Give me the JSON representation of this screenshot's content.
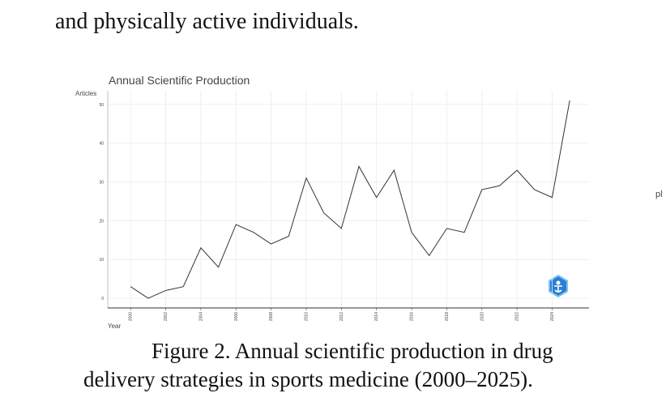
{
  "paragraph_tail": "and physically active individuals.",
  "chart_data": {
    "type": "line",
    "title": "Annual Scientific Production",
    "y_label": "Articles",
    "x_label": "Year",
    "x": [
      2000,
      2001,
      2002,
      2003,
      2004,
      2005,
      2006,
      2007,
      2008,
      2009,
      2010,
      2011,
      2012,
      2013,
      2014,
      2015,
      2016,
      2017,
      2018,
      2019,
      2020,
      2021,
      2022,
      2023,
      2024,
      2025
    ],
    "values": [
      3,
      0,
      2,
      3,
      13,
      8,
      19,
      17,
      14,
      16,
      31,
      22,
      18,
      34,
      26,
      33,
      17,
      11,
      18,
      17,
      28,
      29,
      33,
      28,
      26,
      51
    ],
    "color": "#333333",
    "xlim": [
      1998.7,
      2026.1
    ],
    "xticks": [
      2000,
      2002,
      2004,
      2006,
      2008,
      2010,
      2012,
      2014,
      2016,
      2018,
      2020,
      2022,
      2024
    ],
    "ylim": [
      -2.5,
      53.5
    ],
    "yticks": [
      0,
      10,
      20,
      30,
      40,
      50
    ],
    "grid": true
  },
  "caption": [
    "Figure 2. Annual scientific production in drug",
    "delivery strategies in sports medicine (2000–2025)."
  ],
  "margin_note": "pl"
}
